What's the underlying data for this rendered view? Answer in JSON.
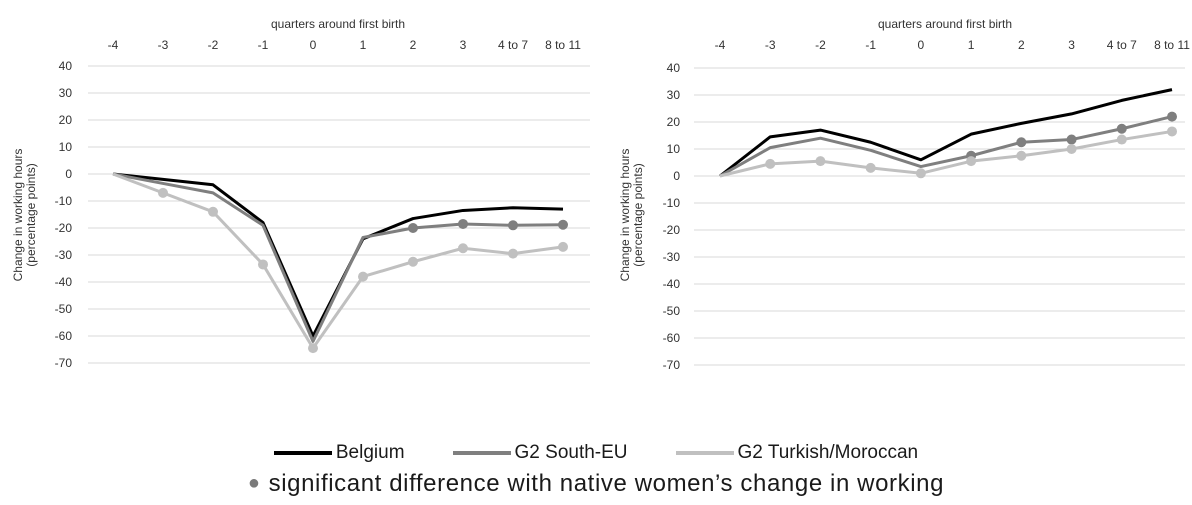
{
  "chart_data": [
    {
      "type": "line",
      "title": "",
      "xlabel": "quarters around first birth",
      "ylabel": [
        "Change in working hours",
        "(percentage points)"
      ],
      "categories": [
        "-4",
        "-3",
        "-2",
        "-1",
        "0",
        "1",
        "2",
        "3",
        "4 to 7",
        "8 to 11"
      ],
      "ylim": [
        -70,
        40
      ],
      "yticks": [
        40,
        30,
        20,
        10,
        0,
        -10,
        -20,
        -30,
        -40,
        -50,
        -60,
        -70
      ],
      "grid": true,
      "series": [
        {
          "name": "Belgium",
          "color": "#000000",
          "values": [
            0,
            -2,
            -4,
            -18,
            -60,
            -24,
            -16.5,
            -13.5,
            -12.5,
            -13
          ],
          "markers": [
            false,
            false,
            false,
            false,
            false,
            false,
            false,
            false,
            false,
            false
          ]
        },
        {
          "name": "G2 South-EU",
          "color": "#7f7f7f",
          "values": [
            0,
            -3.5,
            -7,
            -19,
            -62,
            -23.5,
            -20,
            -18.5,
            -19,
            -18.8
          ],
          "markers": [
            false,
            false,
            false,
            false,
            false,
            false,
            true,
            true,
            true,
            true
          ]
        },
        {
          "name": "G2 Turkish/Moroccan",
          "color": "#c0c0c0",
          "values": [
            0,
            -7,
            -14,
            -33.5,
            -64.5,
            -38,
            -32.5,
            -27.5,
            -29.5,
            -27
          ],
          "markers": [
            false,
            true,
            true,
            true,
            true,
            true,
            true,
            true,
            true,
            true
          ]
        }
      ]
    },
    {
      "type": "line",
      "title": "",
      "xlabel": "quarters around first birth",
      "ylabel": [
        "Change in working hours",
        "(percentage points)"
      ],
      "categories": [
        "-4",
        "-3",
        "-2",
        "-1",
        "0",
        "1",
        "2",
        "3",
        "4 to 7",
        "8 to 11"
      ],
      "ylim": [
        -70,
        40
      ],
      "yticks": [
        40,
        30,
        20,
        10,
        0,
        -10,
        -20,
        -30,
        -40,
        -50,
        -60,
        -70
      ],
      "grid": true,
      "series": [
        {
          "name": "Belgium",
          "color": "#000000",
          "values": [
            0,
            14.5,
            17,
            12.5,
            6,
            15.5,
            19.5,
            23,
            28,
            32
          ],
          "markers": [
            false,
            false,
            false,
            false,
            false,
            false,
            false,
            false,
            false,
            false
          ]
        },
        {
          "name": "G2 South-EU",
          "color": "#7f7f7f",
          "values": [
            0,
            10.5,
            14,
            9.5,
            3.5,
            7.5,
            12.5,
            13.5,
            17.5,
            22
          ],
          "markers": [
            false,
            false,
            false,
            false,
            false,
            true,
            true,
            true,
            true,
            true
          ]
        },
        {
          "name": "G2 Turkish/Moroccan",
          "color": "#c0c0c0",
          "values": [
            0,
            4.5,
            5.5,
            3,
            1,
            5.5,
            7.5,
            10,
            13.5,
            16.5
          ],
          "markers": [
            false,
            true,
            true,
            true,
            true,
            true,
            true,
            true,
            true,
            true
          ]
        }
      ]
    }
  ],
  "legend": [
    {
      "label": "Belgium",
      "color": "#000000"
    },
    {
      "label": "G2 South-EU",
      "color": "#7f7f7f"
    },
    {
      "label": "G2 Turkish/Moroccan",
      "color": "#c0c0c0"
    }
  ],
  "note": {
    "marker": "●",
    "text": "significant difference with native women’s change in working"
  }
}
